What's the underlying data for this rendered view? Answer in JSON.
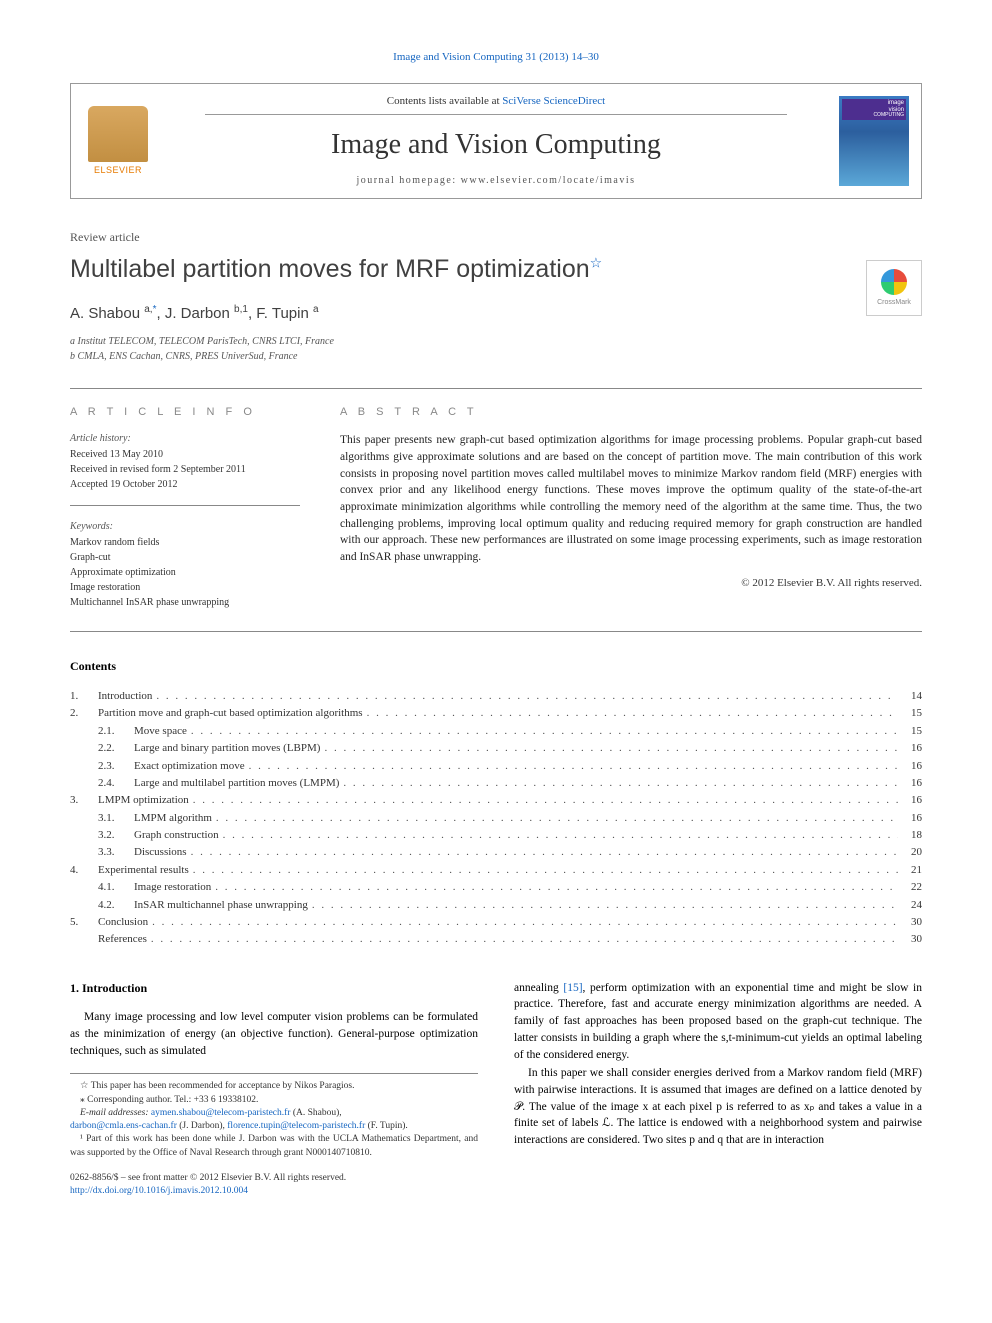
{
  "journal_ref": "Image and Vision Computing 31 (2013) 14–30",
  "header": {
    "contents_prefix": "Contents lists available at ",
    "contents_link": "SciVerse ScienceDirect",
    "journal_title": "Image and Vision Computing",
    "homepage_prefix": "journal homepage: ",
    "homepage": "www.elsevier.com/locate/imavis",
    "elsevier_label": "ELSEVIER",
    "cover_label_1": "image",
    "cover_label_2": "vision",
    "cover_label_3": "COMPUTING"
  },
  "crossmark": "CrossMark",
  "article": {
    "type": "Review article",
    "title": "Multilabel partition moves for MRF optimization",
    "authors_html": "A. Shabou <sup>a,</sup>",
    "author_link": "*",
    "authors_rest": ", J. Darbon ",
    "authors_b": "b,1",
    "authors_rest2": ", F. Tupin ",
    "authors_a": "a",
    "affiliations": [
      "a Institut TELECOM, TELECOM ParisTech, CNRS LTCI, France",
      "b CMLA, ENS Cachan, CNRS, PRES UniverSud, France"
    ]
  },
  "info": {
    "heading": "A R T I C L E   I N F O",
    "history_label": "Article history:",
    "history": [
      "Received 13 May 2010",
      "Received in revised form 2 September 2011",
      "Accepted 19 October 2012"
    ],
    "keywords_label": "Keywords:",
    "keywords": [
      "Markov random fields",
      "Graph-cut",
      "Approximate optimization",
      "Image restoration",
      "Multichannel InSAR phase unwrapping"
    ]
  },
  "abstract": {
    "heading": "A B S T R A C T",
    "text": "This paper presents new graph-cut based optimization algorithms for image processing problems. Popular graph-cut based algorithms give approximate solutions and are based on the concept of partition move. The main contribution of this work consists in proposing novel partition moves called multilabel moves to minimize Markov random field (MRF) energies with convex prior and any likelihood energy functions. These moves improve the optimum quality of the state-of-the-art approximate minimization algorithms while controlling the memory need of the algorithm at the same time. Thus, the two challenging problems, improving local optimum quality and reducing required memory for graph construction are handled with our approach. These new performances are illustrated on some image processing experiments, such as image restoration and InSAR phase unwrapping.",
    "copyright": "© 2012 Elsevier B.V. All rights reserved."
  },
  "contents": {
    "heading": "Contents",
    "items": [
      {
        "num": "1.",
        "label": "Introduction",
        "page": "14",
        "level": 0
      },
      {
        "num": "2.",
        "label": "Partition move and graph-cut based optimization algorithms",
        "page": "15",
        "level": 0
      },
      {
        "num": "2.1.",
        "label": "Move space",
        "page": "15",
        "level": 1
      },
      {
        "num": "2.2.",
        "label": "Large and binary partition moves (LBPM)",
        "page": "16",
        "level": 1
      },
      {
        "num": "2.3.",
        "label": "Exact optimization move",
        "page": "16",
        "level": 1
      },
      {
        "num": "2.4.",
        "label": "Large and multilabel partition moves (LMPM)",
        "page": "16",
        "level": 1
      },
      {
        "num": "3.",
        "label": "LMPM optimization",
        "page": "16",
        "level": 0
      },
      {
        "num": "3.1.",
        "label": "LMPM algorithm",
        "page": "16",
        "level": 1
      },
      {
        "num": "3.2.",
        "label": "Graph construction",
        "page": "18",
        "level": 1
      },
      {
        "num": "3.3.",
        "label": "Discussions",
        "page": "20",
        "level": 1
      },
      {
        "num": "4.",
        "label": "Experimental results",
        "page": "21",
        "level": 0
      },
      {
        "num": "4.1.",
        "label": "Image restoration",
        "page": "22",
        "level": 1
      },
      {
        "num": "4.2.",
        "label": "InSAR multichannel phase unwrapping",
        "page": "24",
        "level": 1
      },
      {
        "num": "5.",
        "label": "Conclusion",
        "page": "30",
        "level": 0
      },
      {
        "num": "",
        "label": "References",
        "page": "30",
        "level": 0
      }
    ]
  },
  "body": {
    "section_heading": "1. Introduction",
    "col1_p1": "Many image processing and low level computer vision problems can be formulated as the minimization of energy (an objective function). General-purpose optimization techniques, such as simulated",
    "col2_p1_a": "annealing ",
    "col2_ref": "[15]",
    "col2_p1_b": ", perform optimization with an exponential time and might be slow in practice. Therefore, fast and accurate energy minimization algorithms are needed. A family of fast approaches has been proposed based on the graph-cut technique. The latter consists in building a graph where the s,t-minimum-cut yields an optimal labeling of the considered energy.",
    "col2_p2": "In this paper we shall consider energies derived from a Markov random field (MRF) with pairwise interactions. It is assumed that images are defined on a lattice denoted by 𝒫. The value of the image x at each pixel p is referred to as xₚ and takes a value in a finite set of labels ℒ. The lattice is endowed with a neighborhood system and pairwise interactions are considered. Two sites p and q that are in interaction"
  },
  "footnotes": {
    "star": "☆ This paper has been recommended for acceptance by Nikos Paragios.",
    "corr": "⁎ Corresponding author. Tel.: +33 6 19338102.",
    "email_label": "E-mail addresses: ",
    "email1": "aymen.shabou@telecom-paristech.fr",
    "email1_who": " (A. Shabou),",
    "email2": "darbon@cmla.ens-cachan.fr",
    "email2_who": " (J. Darbon), ",
    "email3": "florence.tupin@telecom-paristech.fr",
    "email3_who": " (F. Tupin).",
    "note1": "¹ Part of this work has been done while J. Darbon was with the UCLA Mathematics Department, and was supported by the Office of Naval Research through grant N000140710810."
  },
  "footer": {
    "line1": "0262-8856/$ – see front matter © 2012 Elsevier B.V. All rights reserved.",
    "doi": "http://dx.doi.org/10.1016/j.imavis.2012.10.004"
  },
  "colors": {
    "link": "#1565c0",
    "text": "#000000",
    "muted": "#555555",
    "rule": "#888888"
  }
}
